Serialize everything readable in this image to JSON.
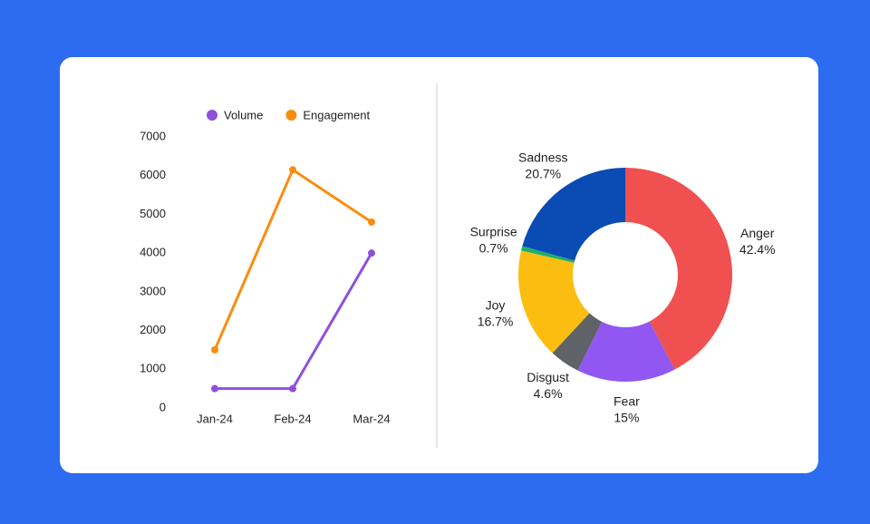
{
  "chart_data": [
    {
      "type": "line",
      "categories": [
        "Jan-24",
        "Feb-24",
        "Mar-24"
      ],
      "series": [
        {
          "name": "Volume",
          "color": "#8e50dc",
          "values": [
            500,
            500,
            4000
          ]
        },
        {
          "name": "Engagement",
          "color": "#fb8c0e",
          "values": [
            1500,
            6150,
            4800
          ]
        }
      ],
      "ylim": [
        0,
        7000
      ],
      "yticks": [
        0,
        1000,
        2000,
        3000,
        4000,
        5000,
        6000,
        7000
      ],
      "grid": false,
      "legend": "top"
    },
    {
      "type": "pie",
      "categories": [
        "Anger",
        "Fear",
        "Disgust",
        "Joy",
        "Surprise",
        "Sadness"
      ],
      "values": [
        42.4,
        15,
        4.6,
        16.7,
        0.7,
        20.7
      ],
      "value_labels": [
        "42.4%",
        "15%",
        "4.6%",
        "16.7%",
        "0.7%",
        "20.7%"
      ],
      "colors": [
        "#f05050",
        "#9257f2",
        "#5f6368",
        "#fbbe10",
        "#1fae6a",
        "#0a4bb4"
      ],
      "donut": true
    }
  ]
}
